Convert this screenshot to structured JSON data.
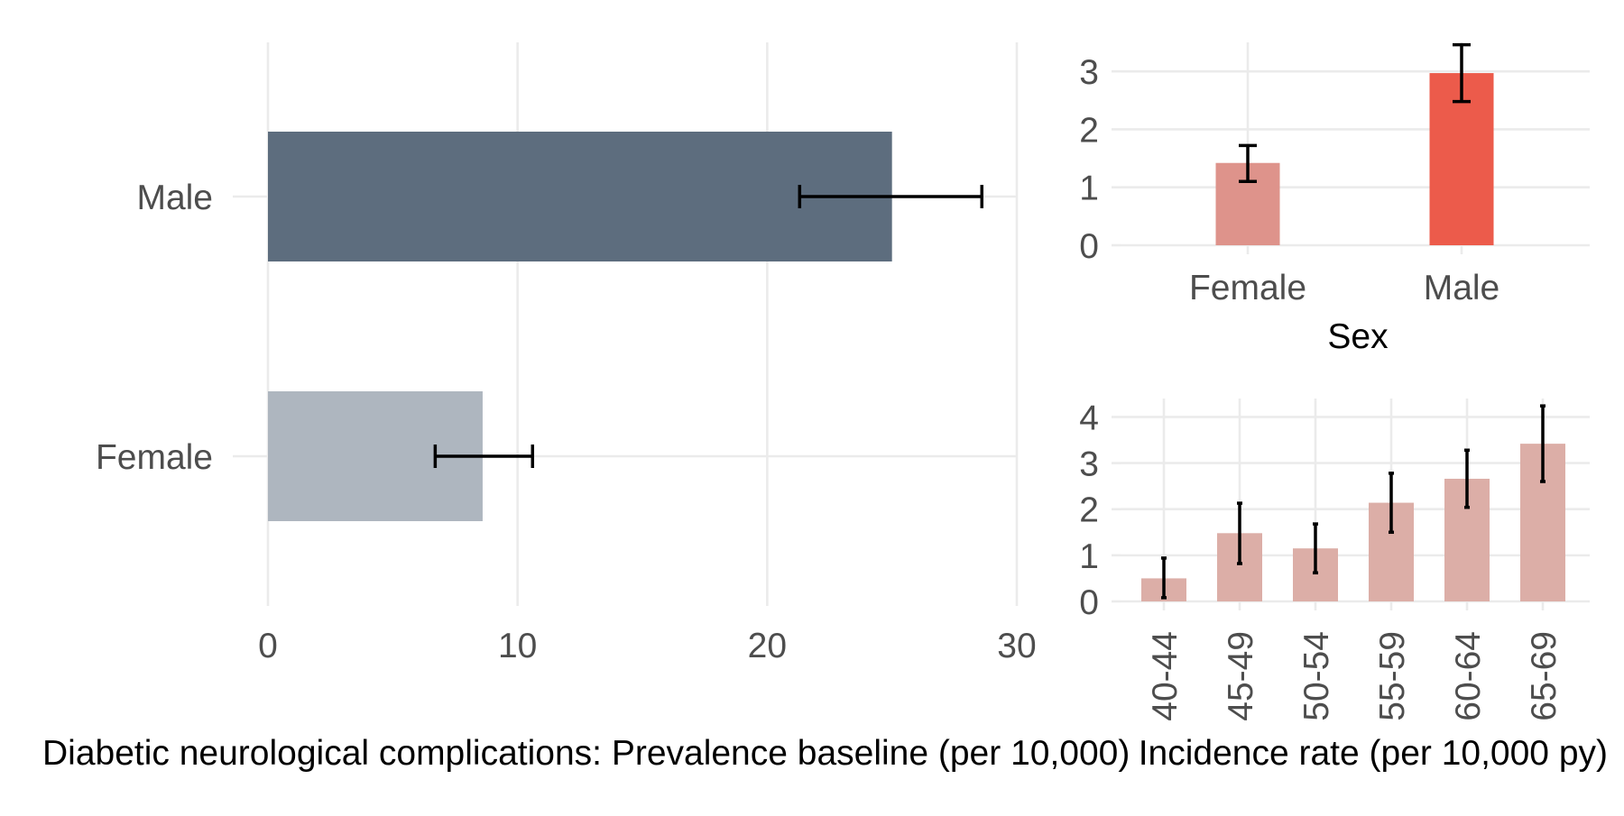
{
  "chart_data": [
    {
      "id": "prevalence_by_sex",
      "type": "bar",
      "orientation": "horizontal",
      "categories": [
        "Male",
        "Female"
      ],
      "values": [
        25,
        8.6
      ],
      "ci_low": [
        21.3,
        6.7
      ],
      "ci_high": [
        28.6,
        10.6
      ],
      "colors": [
        "#5d6d7e",
        "#aeb6bf"
      ],
      "xlim": [
        0,
        30
      ],
      "xticks": [
        "0",
        "10",
        "20",
        "30"
      ],
      "xlabel": "Diabetic neurological complications: Prevalence baseline (per 10,000)",
      "grid": true
    },
    {
      "id": "incidence_by_sex",
      "type": "bar",
      "orientation": "vertical",
      "categories": [
        "Female",
        "Male"
      ],
      "values": [
        1.42,
        2.97
      ],
      "ci_low": [
        1.1,
        2.48
      ],
      "ci_high": [
        1.72,
        3.46
      ],
      "colors": [
        "#de938b",
        "#ec5b4b"
      ],
      "ylim": [
        0,
        3.5
      ],
      "yticks": [
        "0",
        "1",
        "2",
        "3"
      ],
      "xlabel": "Sex",
      "grid": true
    },
    {
      "id": "incidence_by_age",
      "type": "bar",
      "orientation": "vertical",
      "categories": [
        "40-44",
        "45-49",
        "50-54",
        "55-59",
        "60-64",
        "65-69"
      ],
      "values": [
        0.5,
        1.48,
        1.15,
        2.14,
        2.66,
        3.42
      ],
      "ci_low": [
        0.08,
        0.82,
        0.62,
        1.5,
        2.04,
        2.6
      ],
      "ci_high": [
        0.94,
        2.13,
        1.68,
        2.78,
        3.28,
        4.24
      ],
      "colors": [
        "#dcaea7"
      ],
      "ylim": [
        0,
        4.4
      ],
      "yticks": [
        "0",
        "1",
        "2",
        "3",
        "4"
      ],
      "xlabel": "Incidence rate (per 10,000 py)",
      "grid": true
    }
  ]
}
